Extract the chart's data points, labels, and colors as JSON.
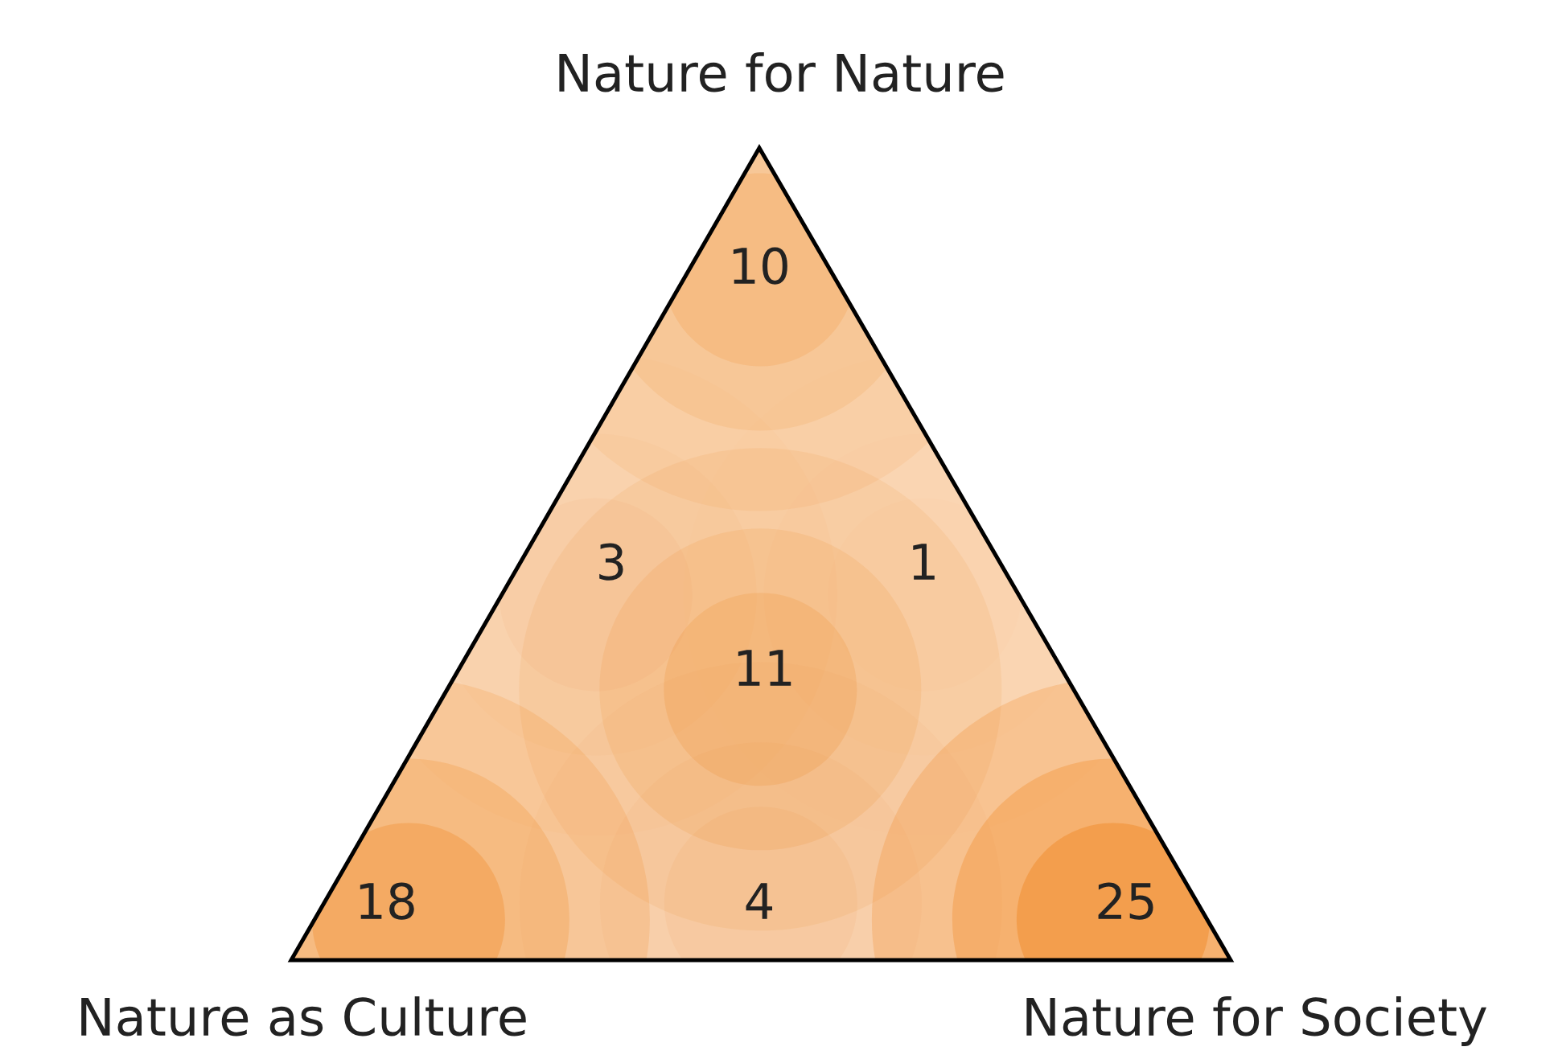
{
  "chart_data": {
    "type": "other",
    "categories": [
      null,
      null,
      null,
      null,
      null,
      null,
      null
    ],
    "values": [
      10,
      3,
      1,
      11,
      18,
      4,
      25
    ],
    "data_labels": true,
    "color": "#ef7d10",
    "annotations": [
      "Nature for Nature",
      "Nature as Culture",
      "Nature for Society"
    ]
  }
}
